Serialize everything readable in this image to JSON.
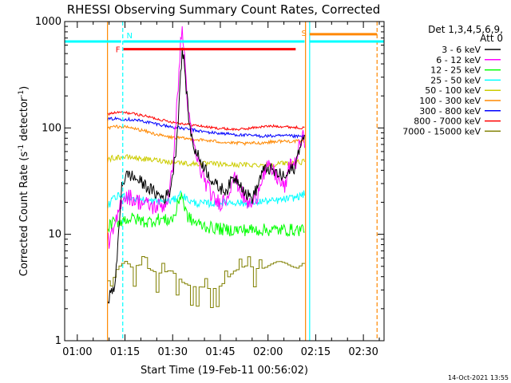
{
  "chart_data": {
    "type": "line",
    "title": "RHESSI Observing Summary Count Rates, Corrected",
    "xlabel": "Start Time (19-Feb-11 00:56:02)",
    "ylabel_main": "Corrected Count Rate (s",
    "ylabel_sup1": "-1",
    "ylabel_mid": " detector",
    "ylabel_sup2": "-1",
    "ylabel_end": ")",
    "yscale": "log",
    "ylim": [
      1,
      1000
    ],
    "xlim_minutes": [
      56.03,
      156.5
    ],
    "y_ticks": [
      {
        "value": 1,
        "label": "1"
      },
      {
        "value": 10,
        "label": "10"
      },
      {
        "value": 100,
        "label": "100"
      },
      {
        "value": 1000,
        "label": "1000"
      }
    ],
    "x_ticks": [
      {
        "minutes": 60,
        "label": "01:00"
      },
      {
        "minutes": 75,
        "label": "01:15"
      },
      {
        "minutes": 90,
        "label": "01:30"
      },
      {
        "minutes": 105,
        "label": "01:45"
      },
      {
        "minutes": 120,
        "label": "02:00"
      },
      {
        "minutes": 135,
        "label": "02:15"
      },
      {
        "minutes": 150,
        "label": "02:30"
      }
    ],
    "legend_title_1": "Det 1,3,4,5,6,9,",
    "legend_title_2": "Att 0",
    "legend_position": "top-right outside plot",
    "series": [
      {
        "name": "3 - 6 keV",
        "color": "#000000",
        "x": [
          69.5,
          70.5,
          72,
          74,
          76,
          78,
          80,
          82,
          84,
          86,
          87.5,
          89,
          90,
          91,
          91.8,
          92.5,
          93,
          93.7,
          94.5,
          95.5,
          97,
          99,
          101,
          103,
          105,
          107,
          109,
          111,
          113,
          115,
          116.5,
          118,
          120,
          122,
          124,
          125.5,
          127,
          128.5,
          130,
          131,
          131.5
        ],
        "y": [
          2.5,
          2.7,
          3.5,
          30,
          37,
          34,
          31,
          28,
          25,
          23,
          22,
          25,
          36,
          62,
          130,
          330,
          520,
          400,
          190,
          95,
          62,
          48,
          38,
          30,
          27,
          26,
          34,
          32,
          24,
          22,
          27,
          38,
          42,
          38,
          36,
          34,
          40,
          42,
          70,
          77,
          75
        ]
      },
      {
        "name": "6 - 12 keV",
        "color": "#ff00ff",
        "x": [
          69.5,
          70.5,
          72,
          74,
          76,
          78,
          80,
          82,
          84,
          86,
          87.5,
          89,
          90,
          91,
          91.8,
          92.5,
          93,
          93.7,
          94.5,
          95.5,
          97,
          99,
          101,
          103,
          105,
          107,
          109,
          111,
          113,
          115,
          116.5,
          118,
          120,
          122,
          124,
          125.5,
          127,
          128.5,
          130,
          131,
          131.5
        ],
        "y": [
          8.5,
          9,
          12,
          22,
          23,
          21,
          20,
          19,
          18,
          18.5,
          19,
          24,
          45,
          110,
          280,
          600,
          820,
          500,
          200,
          100,
          60,
          38,
          28,
          21,
          20,
          22,
          35,
          28,
          20,
          19,
          23,
          35,
          42,
          38,
          30,
          28,
          48,
          45,
          70,
          80,
          75
        ]
      },
      {
        "name": "12 - 25 keV",
        "color": "#00ff00",
        "x": [
          69.5,
          70.5,
          72,
          74,
          76,
          78,
          80,
          82,
          84,
          86,
          88,
          90,
          91,
          92,
          92.8,
          93.5,
          94.5,
          96,
          98,
          100,
          102,
          104,
          106,
          108,
          110,
          112,
          114,
          116,
          118,
          120,
          122,
          124,
          126,
          128,
          130,
          131.5
        ],
        "y": [
          11,
          12.5,
          13,
          13.5,
          14,
          14,
          13.5,
          13,
          13.5,
          14,
          13.5,
          14,
          16,
          21,
          25,
          19,
          15,
          13.5,
          12.5,
          12,
          11.5,
          11.5,
          11,
          11,
          11,
          11,
          11,
          11,
          11,
          11,
          11,
          11,
          11,
          11,
          11,
          11.5
        ]
      },
      {
        "name": "25 - 50 keV",
        "color": "#00ffff",
        "x": [
          69.5,
          71,
          73,
          75,
          77,
          79,
          81,
          83,
          85,
          87,
          89,
          91,
          92,
          93,
          94,
          96,
          98,
          100,
          102,
          104,
          106,
          108,
          110,
          112,
          114,
          116,
          118,
          120,
          122,
          124,
          126,
          128,
          130,
          131.5
        ],
        "y": [
          18,
          21,
          23,
          23,
          22,
          21.5,
          21,
          20.5,
          20.5,
          20.5,
          20.5,
          21.5,
          24,
          24,
          22,
          20,
          19.5,
          19.5,
          19.5,
          19.5,
          20,
          20,
          20,
          19.5,
          19.5,
          20,
          20.5,
          20.5,
          20.5,
          21,
          21.5,
          22,
          23,
          24
        ]
      },
      {
        "name": "50 - 100 keV",
        "color": "#cccc00",
        "x": [
          69.5,
          71,
          73,
          75,
          77,
          79,
          81,
          83,
          85,
          87,
          89,
          91,
          93,
          95,
          97,
          99,
          101,
          103,
          105,
          107,
          109,
          111,
          113,
          115,
          117,
          119,
          121,
          123,
          125,
          127,
          129,
          131.5
        ],
        "y": [
          50,
          52,
          53,
          53,
          53,
          52,
          51,
          50,
          50,
          49,
          48,
          48,
          47,
          46,
          46,
          46,
          46,
          46,
          45.5,
          45,
          45,
          45,
          45,
          45,
          45,
          45,
          45.5,
          46,
          46.5,
          47,
          47.5,
          48
        ]
      },
      {
        "name": "100 - 300 keV",
        "color": "#ff8800",
        "x": [
          69.5,
          71,
          73,
          75,
          77,
          79,
          81,
          83,
          85,
          87,
          89,
          91,
          93,
          95,
          97,
          99,
          101,
          103,
          105,
          107,
          109,
          111,
          113,
          115,
          117,
          119,
          121,
          123,
          125,
          127,
          129,
          131.5
        ],
        "y": [
          100,
          102,
          103,
          102,
          100,
          97,
          94,
          90,
          87,
          84,
          82,
          81,
          80,
          79,
          78,
          77,
          76,
          75,
          74,
          73,
          72,
          72,
          71,
          72,
          72,
          73,
          74,
          75,
          75,
          75,
          75,
          75
        ]
      },
      {
        "name": "300 - 800 keV",
        "color": "#0000ff",
        "x": [
          69.5,
          71,
          73,
          75,
          77,
          79,
          81,
          83,
          85,
          87,
          89,
          91,
          93,
          95,
          97,
          99,
          101,
          103,
          105,
          107,
          109,
          111,
          113,
          115,
          117,
          119,
          121,
          123,
          125,
          127,
          129,
          131.5
        ],
        "y": [
          120,
          122,
          122,
          121,
          120,
          118,
          115,
          112,
          109,
          106,
          103,
          101,
          99,
          97,
          95,
          93,
          91,
          90,
          89,
          88,
          87,
          86,
          85,
          85,
          84,
          84,
          84,
          84,
          84,
          84,
          83,
          83
        ]
      },
      {
        "name": "800 - 7000 keV",
        "color": "#ff0000",
        "x": [
          69.5,
          71,
          73,
          75,
          77,
          79,
          81,
          83,
          85,
          87,
          89,
          91,
          93,
          95,
          97,
          99,
          101,
          103,
          105,
          107,
          109,
          111,
          113,
          115,
          117,
          119,
          121,
          123,
          125,
          127,
          129,
          131.5
        ],
        "y": [
          135,
          138,
          140,
          139,
          137,
          134,
          130,
          126,
          122,
          118,
          115,
          112,
          110,
          108,
          106,
          104,
          102,
          100,
          99,
          98,
          97,
          97,
          98,
          100,
          102,
          103,
          104,
          104,
          103,
          102,
          101,
          100
        ]
      },
      {
        "name": "7000 - 15000 keV",
        "color": "#808000",
        "x": [
          69.5,
          70.5,
          72,
          73.5,
          75,
          77,
          79,
          81,
          83,
          85,
          87,
          89,
          91,
          93,
          95,
          97,
          99,
          101,
          103,
          105,
          107,
          109,
          111,
          113,
          115,
          117,
          119,
          121,
          123,
          125,
          127,
          129,
          131.5
        ],
        "y": [
          3,
          3.3,
          4.6,
          5.2,
          5.6,
          4.8,
          5.2,
          5,
          4.6,
          4.3,
          4.4,
          4.6,
          4.1,
          3.5,
          3.3,
          3.2,
          3.2,
          3.1,
          3.1,
          3.3,
          3.9,
          4.5,
          4.8,
          5.1,
          4.9,
          4.7,
          4.9,
          5.3,
          5.6,
          5.4,
          5,
          4.8,
          5.6
        ]
      }
    ],
    "flag_markers": [
      {
        "label": "N",
        "color": "#00ffff",
        "x_start": 74.5,
        "x_end": 131.5,
        "level": 650
      },
      {
        "label": "F",
        "color": "#ff0000",
        "x_start": 74.5,
        "x_end": 128.7,
        "level": 550
      },
      {
        "label": "S",
        "color": "#ff8800",
        "x_start": 133.1,
        "x_end": 154.3,
        "level": 760
      }
    ],
    "gap_segments": [
      {
        "color": "#00ffff",
        "x_start": 56.03,
        "x_end": 73.8,
        "level": 650
      },
      {
        "color": "#00ffff",
        "x_start": 133.1,
        "x_end": 156.5,
        "level": 650
      }
    ],
    "vlines": [
      {
        "x": 69.5,
        "color": "#ff8800",
        "style": "solid"
      },
      {
        "x": 74.3,
        "color": "#00ffff",
        "style": "dashed"
      },
      {
        "x": 131.8,
        "color": "#ff8800",
        "style": "solid"
      },
      {
        "x": 133.1,
        "color": "#00ffff",
        "style": "solid"
      },
      {
        "x": 154.3,
        "color": "#ff8800",
        "style": "dashed"
      }
    ]
  },
  "timestamp": "14-Oct-2021 13:55"
}
